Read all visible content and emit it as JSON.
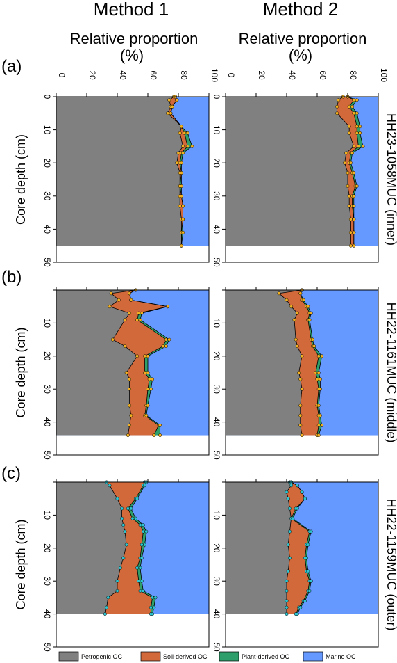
{
  "column_titles": [
    "Method 1",
    "Method 2"
  ],
  "axis_title_line1": "Relative proportion",
  "axis_title_line2": "(%)",
  "ylabel": "Core depth (cm)",
  "x_ticks": [
    "0",
    "20",
    "40",
    "60",
    "80",
    "100"
  ],
  "y_ticks": [
    "0",
    "10",
    "20",
    "30",
    "40",
    "50"
  ],
  "legend": [
    {
      "label": "Petrogenic OC",
      "color": "#808080"
    },
    {
      "label": "Soil-derived OC",
      "color": "#d2693a"
    },
    {
      "label": "Plant-derived OC",
      "color": "#2e9e6a"
    },
    {
      "label": "Marine OC",
      "color": "#6699ff"
    }
  ],
  "colors": {
    "petrogenic": "#808080",
    "soil": "#d2693a",
    "plant": "#2e9e6a",
    "marine": "#6699ff",
    "markers": [
      "#f0b020",
      "#f0b020",
      "#2ec4d0"
    ]
  },
  "chart_data": [
    {
      "type": "area",
      "panel": "(a)",
      "core_label": "HH23-1058MUC (inner)",
      "xlim": [
        0,
        100
      ],
      "ylim": [
        50,
        0
      ],
      "max_depth": 45,
      "methods": [
        {
          "title": "Method 1",
          "depth": [
            0,
            1,
            3,
            5,
            9,
            11,
            15,
            17,
            20,
            23,
            27,
            30,
            33,
            37,
            41,
            45
          ],
          "petrogenic": [
            77,
            74,
            75,
            73,
            82,
            81,
            83,
            80,
            79,
            81,
            81,
            81,
            81,
            82,
            82,
            82
          ],
          "soil_top": [
            78,
            79,
            76,
            75,
            82,
            84,
            86,
            82,
            81,
            82,
            81,
            82,
            83,
            83,
            82,
            82
          ],
          "plant_top": [
            78,
            79,
            76,
            75,
            82,
            86,
            89,
            83,
            82,
            82,
            82,
            82,
            83,
            83,
            83,
            82
          ]
        },
        {
          "title": "Method 2",
          "depth": [
            0,
            1,
            3,
            5,
            9,
            11,
            15,
            17,
            20,
            23,
            27,
            30,
            33,
            37,
            41,
            45
          ],
          "petrogenic": [
            77,
            74,
            73,
            73,
            81,
            81,
            84,
            79,
            78,
            80,
            80,
            81,
            81,
            82,
            82,
            82
          ],
          "soil_top": [
            80,
            84,
            81,
            84,
            86,
            86,
            87,
            82,
            81,
            83,
            85,
            83,
            83,
            84,
            84,
            84
          ],
          "plant_top": [
            80,
            86,
            83,
            86,
            88,
            88,
            90,
            83,
            82,
            84,
            86,
            84,
            84,
            84,
            84,
            84
          ]
        }
      ]
    },
    {
      "type": "area",
      "panel": "(b)",
      "core_label": "HH22-1161MUC (middle)",
      "xlim": [
        0,
        100
      ],
      "ylim": [
        50,
        0
      ],
      "max_depth": 44,
      "methods": [
        {
          "title": "Method 1",
          "depth": [
            0,
            1,
            3,
            5,
            7,
            9,
            15,
            17,
            20,
            25,
            27,
            30,
            35,
            38,
            41,
            44
          ],
          "petrogenic": [
            52,
            36,
            41,
            35,
            48,
            45,
            37,
            45,
            53,
            46,
            48,
            48,
            48,
            49,
            48,
            47
          ],
          "soil_top": [
            52,
            48,
            49,
            73,
            54,
            53,
            72,
            70,
            58,
            58,
            61,
            60,
            59,
            58,
            67,
            64
          ],
          "plant_top": [
            52,
            48,
            49,
            73,
            56,
            55,
            74,
            72,
            60,
            60,
            63,
            62,
            60,
            59,
            68,
            68
          ]
        },
        {
          "title": "Method 2",
          "depth": [
            0,
            1,
            3,
            5,
            7,
            9,
            15,
            17,
            20,
            25,
            27,
            30,
            35,
            38,
            41,
            44
          ],
          "petrogenic": [
            50,
            35,
            40,
            43,
            47,
            45,
            46,
            47,
            50,
            48,
            49,
            50,
            49,
            49,
            49,
            50
          ],
          "soil_top": [
            50,
            49,
            50,
            53,
            55,
            54,
            56,
            57,
            61,
            59,
            60,
            61,
            60,
            61,
            61,
            60
          ],
          "plant_top": [
            50,
            49,
            51,
            54,
            56,
            55,
            57,
            58,
            63,
            61,
            62,
            62,
            61,
            62,
            63,
            61
          ]
        }
      ]
    },
    {
      "type": "area",
      "panel": "(c)",
      "core_label": "HH22-1159MUC (outer)",
      "xlim": [
        0,
        100
      ],
      "ylim": [
        50,
        0
      ],
      "max_depth": 40,
      "methods": [
        {
          "title": "Method 1",
          "depth": [
            0,
            1,
            5,
            8,
            11,
            13,
            15,
            19,
            23,
            26,
            30,
            33,
            35,
            38,
            40
          ],
          "petrogenic": [
            33,
            35,
            40,
            43,
            43,
            44,
            45,
            46,
            44,
            42,
            40,
            40,
            34,
            33,
            32
          ],
          "soil_top": [
            58,
            57,
            52,
            47,
            50,
            55,
            57,
            56,
            55,
            53,
            54,
            55,
            63,
            62,
            62
          ],
          "plant_top": [
            59,
            58,
            53,
            49,
            52,
            57,
            59,
            58,
            56,
            55,
            56,
            57,
            65,
            64,
            63
          ]
        },
        {
          "title": "Method 2",
          "depth": [
            0,
            1,
            3,
            5,
            8,
            11,
            15,
            19,
            23,
            27,
            30,
            33,
            36,
            38,
            40
          ],
          "petrogenic": [
            42,
            43,
            40,
            41,
            42,
            43,
            42,
            41,
            42,
            41,
            40,
            40,
            40,
            40,
            40
          ],
          "soil_top": [
            43,
            47,
            50,
            52,
            46,
            43,
            55,
            53,
            52,
            53,
            55,
            54,
            51,
            48,
            46
          ],
          "plant_top": [
            43,
            47,
            50,
            52,
            47,
            44,
            56,
            54,
            53,
            54,
            56,
            55,
            52,
            49,
            47
          ]
        }
      ]
    }
  ]
}
